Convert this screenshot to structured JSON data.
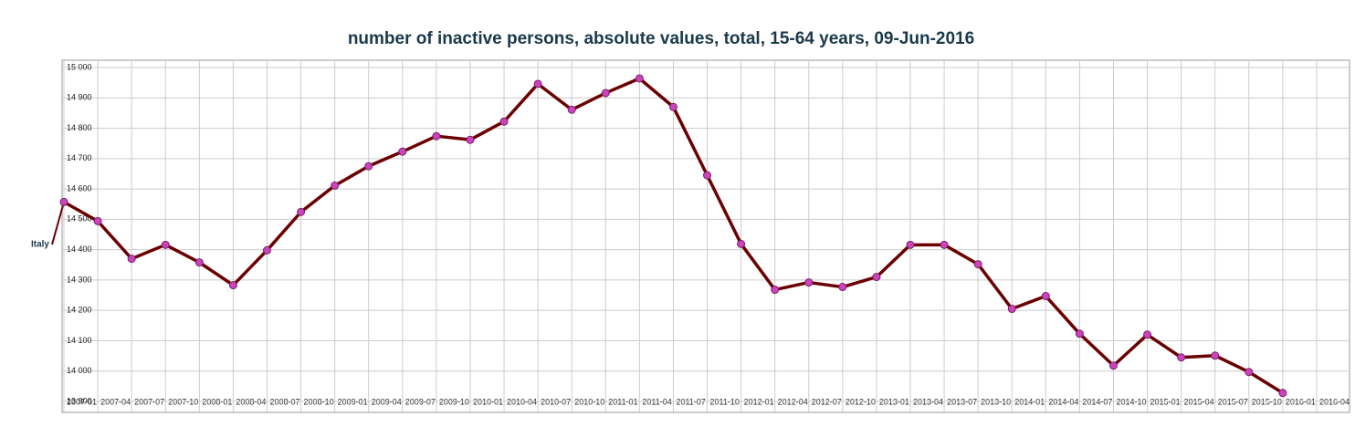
{
  "chart_data": {
    "type": "line",
    "title": "number of inactive persons, absolute values, total, 15-64 years, 09-Jun-2016",
    "categories": [
      "2007-01",
      "2007-04",
      "2007-07",
      "2007-10",
      "2008-01",
      "2008-04",
      "2008-07",
      "2008-10",
      "2009-01",
      "2009-04",
      "2009-07",
      "2009-10",
      "2010-01",
      "2010-04",
      "2010-07",
      "2010-10",
      "2011-01",
      "2011-04",
      "2011-07",
      "2011-10",
      "2012-01",
      "2012-04",
      "2012-07",
      "2012-10",
      "2013-01",
      "2013-04",
      "2013-07",
      "2013-10",
      "2014-01",
      "2014-04",
      "2014-07",
      "2014-10",
      "2015-01",
      "2015-04",
      "2015-07",
      "2015-10",
      "2016-01",
      "2016-04"
    ],
    "series": [
      {
        "name": "Italy",
        "color": "#6b0000",
        "marker_color": "#cc44bb",
        "values": [
          14557,
          14494,
          14370,
          14416,
          14358,
          14283,
          14398,
          14524,
          14611,
          14675,
          14723,
          14774,
          14762,
          14822,
          14946,
          14861,
          14916,
          14964,
          14870,
          14645,
          14419,
          14268,
          14292,
          14277,
          14310,
          14416,
          14416,
          14352,
          14205,
          14247,
          14123,
          14018,
          14120,
          14045,
          14051,
          13997,
          13928,
          null
        ]
      }
    ],
    "ylim": [
      13900,
      15000
    ],
    "yticks": [
      {
        "value": 13900,
        "label": "13 900"
      },
      {
        "value": 14000,
        "label": "14 000"
      },
      {
        "value": 14100,
        "label": "14 100"
      },
      {
        "value": 14200,
        "label": "14 200"
      },
      {
        "value": 14300,
        "label": "14 300"
      },
      {
        "value": 14400,
        "label": "14 400"
      },
      {
        "value": 14500,
        "label": "14 500"
      },
      {
        "value": 14600,
        "label": "14 600"
      },
      {
        "value": 14700,
        "label": "14 700"
      },
      {
        "value": 14800,
        "label": "14 800"
      },
      {
        "value": 14900,
        "label": "14 900"
      },
      {
        "value": 15000,
        "label": "15 000"
      }
    ],
    "grid": true
  }
}
